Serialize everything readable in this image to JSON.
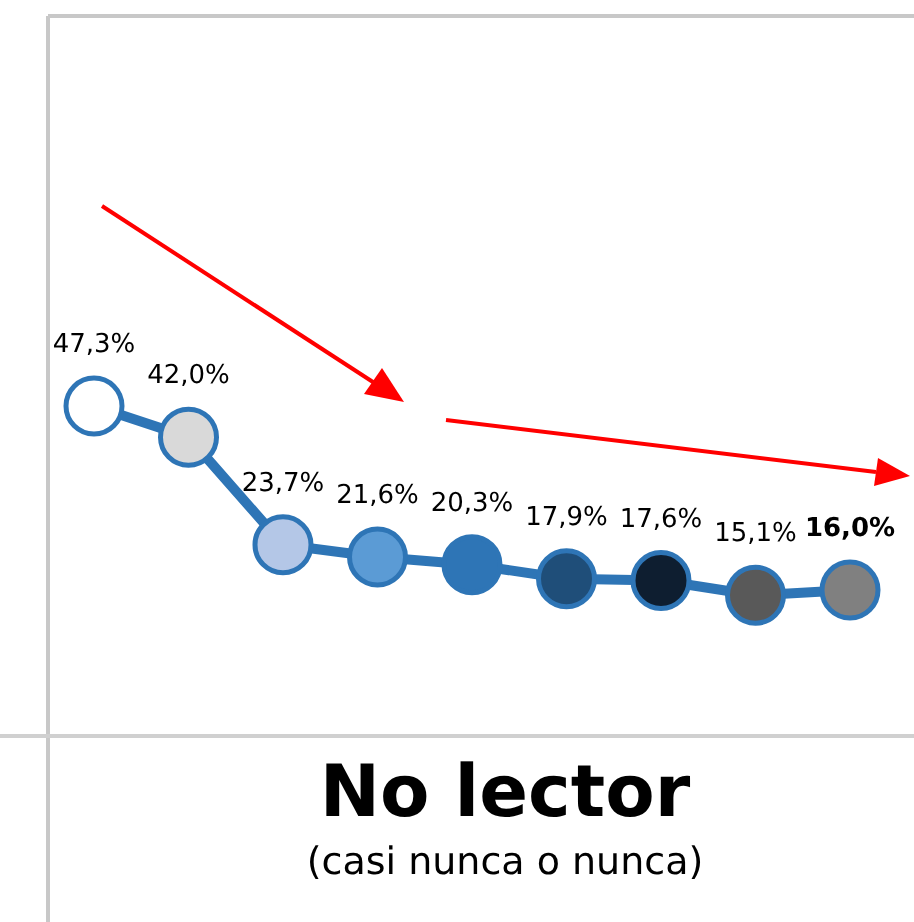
{
  "chart_data": {
    "type": "line",
    "title": "No lector",
    "subtitle": "(casi nunca o nunca)",
    "categories": [
      null,
      null,
      null,
      null,
      null,
      null,
      null,
      null,
      null
    ],
    "series": [
      {
        "color": "#2e75b6",
        "values": [
          47.3,
          42.0,
          23.7,
          21.6,
          20.3,
          17.9,
          17.6,
          15.1,
          16.0
        ],
        "colors": [
          "#ffffff",
          "#d9d9d9",
          "#b4c7e7",
          "#5b9bd5",
          "#2e75b6",
          "#1f4e79",
          "#0e1e30",
          "#595959",
          "#808080"
        ],
        "value_labels": [
          "47,3%",
          "42,0%",
          "23,7%",
          "21,6%",
          "20,3%",
          "17,9%",
          "17,6%",
          "15,1%",
          "16,0%"
        ]
      }
    ],
    "marker": "circle",
    "line_style": "solid"
  }
}
